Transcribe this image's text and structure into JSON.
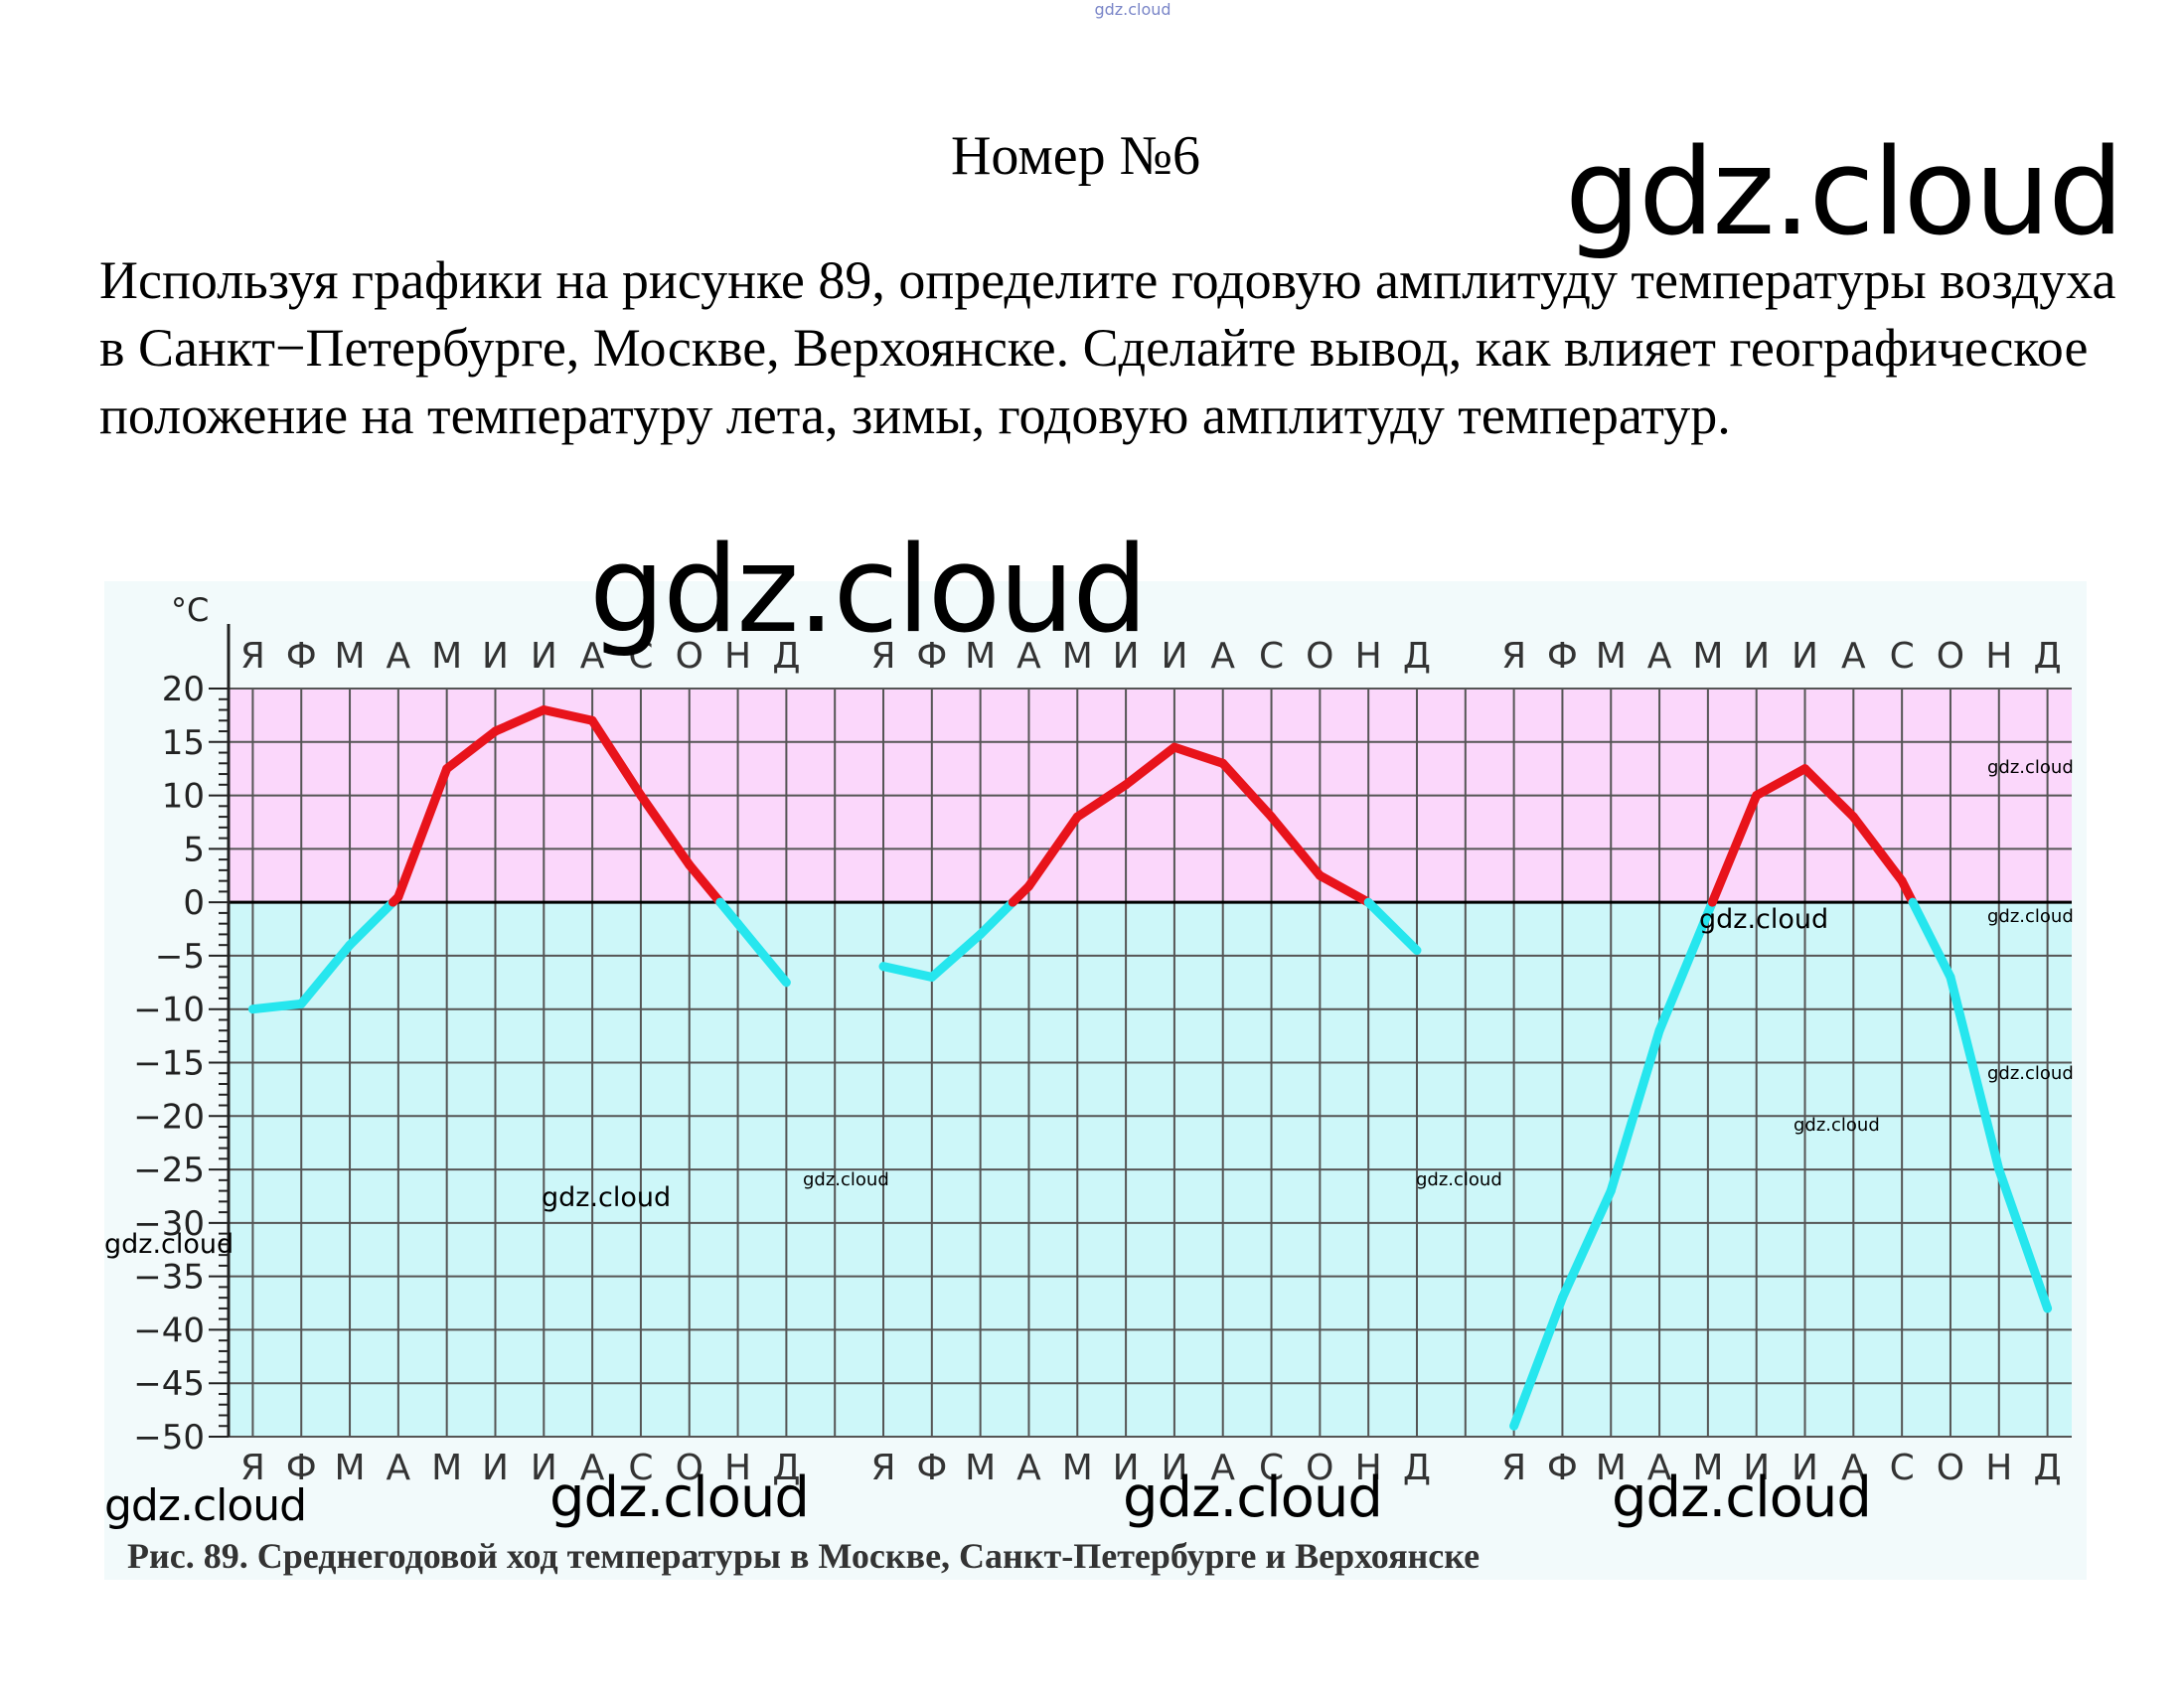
{
  "header": {
    "top_watermark": "gdz.cloud",
    "title": "Номер №6",
    "brand": "gdz.cloud"
  },
  "task": {
    "text": "Используя графики на рисунке 89, определите годовую амплитуду температуры воздуха в Санкт−Петербурге, Москве, Верхоянске. Сделайте вывод, как влияет географическое положение на температуру лета, зимы, годовую амплитуду температур."
  },
  "watermarks": {
    "big": "gdz.cloud",
    "medium": "gdz.cloud",
    "small": "gdz.cloud",
    "tiny": "gdz.cloud"
  },
  "colors": {
    "positive_zone": "#fbd7fb",
    "negative_zone": "#cdf7f9",
    "grid": "#555555",
    "warm_line": "#e8131b",
    "cold_line": "#26e6ee",
    "zero_line": "#000000"
  },
  "chart_data": {
    "type": "line",
    "yunit": "°C",
    "ylim": [
      -50,
      20
    ],
    "yticks": [
      20,
      15,
      10,
      5,
      0,
      -5,
      -10,
      -15,
      -20,
      -25,
      -30,
      -35,
      -40,
      -45,
      -50
    ],
    "months": [
      "Я",
      "Ф",
      "М",
      "А",
      "М",
      "И",
      "И",
      "А",
      "С",
      "О",
      "Н",
      "Д"
    ],
    "grid": true,
    "caption": "Рис. 89. Среднегодовой ход температуры в Москве, Санкт-Петербурге и Верхоянске",
    "panels": [
      {
        "values": [
          -10,
          -9.5,
          -4,
          0.5,
          12.5,
          16,
          18,
          17,
          10,
          3.5,
          -2,
          -7.5
        ]
      },
      {
        "values": [
          -6,
          -7,
          -3,
          1.5,
          8,
          11,
          14.5,
          13,
          8,
          2.5,
          0,
          -4.5
        ]
      },
      {
        "values": [
          -49,
          -37,
          -27,
          -12,
          -1,
          10,
          12.5,
          8,
          2,
          -7,
          -25,
          -38
        ]
      }
    ]
  }
}
